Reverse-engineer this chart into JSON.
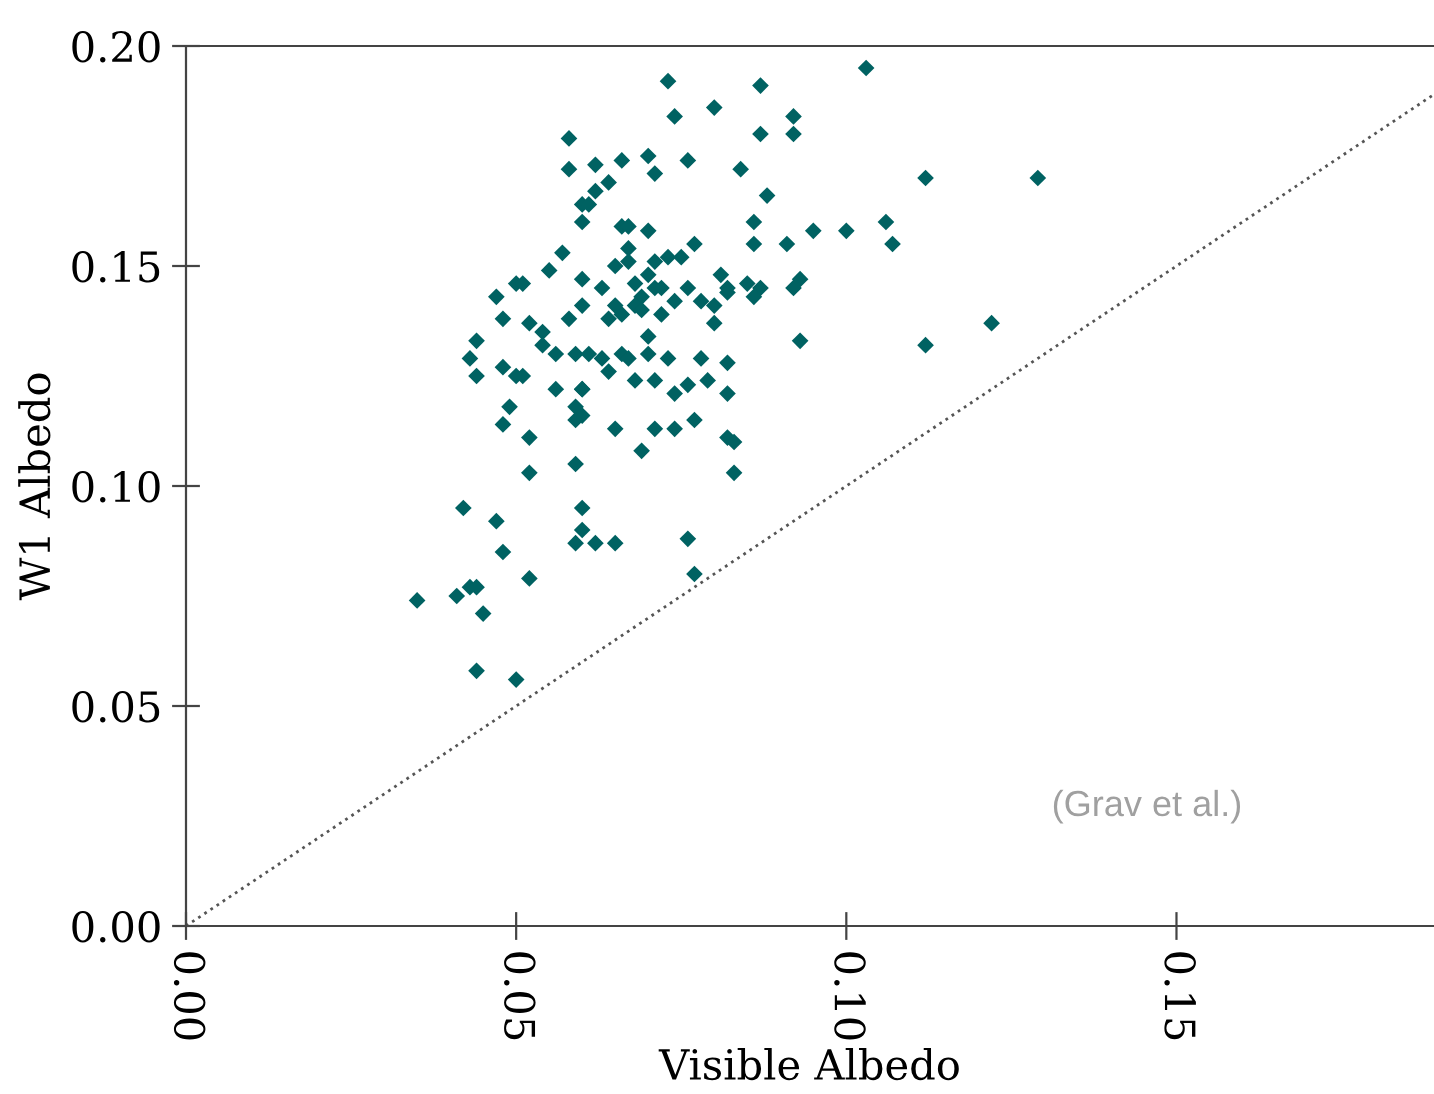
{
  "chart_data": {
    "type": "scatter",
    "xlabel": "Visible Albedo",
    "ylabel": "W1 Albedo",
    "xlim": [
      0,
      0.189
    ],
    "ylim": [
      0,
      0.2
    ],
    "xticks": [
      {
        "value": 0,
        "label": "0.00"
      },
      0.05,
      {
        "value": 0.1,
        "label": "0.10"
      },
      0.15
    ],
    "yticks": [
      {
        "value": 0,
        "label": "0.00"
      },
      0.05,
      {
        "value": 0.1,
        "label": "0.10"
      },
      0.15,
      {
        "value": 0.2,
        "label": "0.20"
      }
    ],
    "grid": false,
    "legend": false,
    "annotations": [
      "(Grav et al.)"
    ],
    "series": [
      {
        "color": "#006262",
        "marker": "diamond",
        "x": [
          0.035,
          0.041,
          0.043,
          0.044,
          0.045,
          0.044,
          0.05,
          0.052,
          0.052,
          0.042,
          0.047,
          0.048,
          0.06,
          0.06,
          0.059,
          0.062,
          0.065,
          0.076,
          0.077,
          0.122,
          0.112,
          0.129,
          0.103,
          0.112,
          0.106,
          0.107,
          0.1,
          0.095,
          0.091,
          0.087,
          0.092,
          0.092,
          0.087,
          0.084,
          0.088,
          0.086,
          0.086,
          0.085,
          0.087,
          0.082,
          0.086,
          0.092,
          0.093,
          0.093,
          0.082,
          0.073,
          0.074,
          0.08,
          0.058,
          0.058,
          0.062,
          0.066,
          0.07,
          0.071,
          0.076,
          0.064,
          0.062,
          0.06,
          0.061,
          0.06,
          0.066,
          0.067,
          0.07,
          0.077,
          0.057,
          0.055,
          0.05,
          0.051,
          0.047,
          0.048,
          0.044,
          0.043,
          0.052,
          0.067,
          0.065,
          0.067,
          0.071,
          0.073,
          0.075,
          0.068,
          0.07,
          0.071,
          0.072,
          0.069,
          0.074,
          0.076,
          0.078,
          0.08,
          0.081,
          0.082,
          0.06,
          0.063,
          0.06,
          0.065,
          0.064,
          0.066,
          0.068,
          0.069,
          0.072,
          0.07,
          0.058,
          0.054,
          0.054,
          0.056,
          0.059,
          0.061,
          0.063,
          0.066,
          0.067,
          0.07,
          0.073,
          0.078,
          0.048,
          0.08,
          0.044,
          0.05,
          0.051,
          0.056,
          0.06,
          0.06,
          0.059,
          0.06,
          0.059,
          0.049,
          0.048,
          0.052,
          0.059,
          0.065,
          0.069,
          0.071,
          0.074,
          0.077,
          0.074,
          0.076,
          0.079,
          0.082,
          0.082,
          0.083,
          0.083,
          0.068,
          0.064,
          0.071
        ],
        "values": [
          0.074,
          0.075,
          0.077,
          0.077,
          0.071,
          0.058,
          0.056,
          0.079,
          0.103,
          0.095,
          0.092,
          0.085,
          0.095,
          0.09,
          0.087,
          0.087,
          0.087,
          0.088,
          0.08,
          0.137,
          0.132,
          0.17,
          0.195,
          0.17,
          0.16,
          0.155,
          0.158,
          0.158,
          0.155,
          0.191,
          0.184,
          0.18,
          0.18,
          0.172,
          0.166,
          0.16,
          0.155,
          0.146,
          0.145,
          0.145,
          0.143,
          0.145,
          0.147,
          0.133,
          0.128,
          0.192,
          0.184,
          0.186,
          0.179,
          0.172,
          0.173,
          0.174,
          0.175,
          0.171,
          0.174,
          0.169,
          0.167,
          0.164,
          0.164,
          0.16,
          0.159,
          0.159,
          0.158,
          0.155,
          0.153,
          0.149,
          0.146,
          0.146,
          0.143,
          0.138,
          0.133,
          0.129,
          0.137,
          0.154,
          0.15,
          0.151,
          0.151,
          0.152,
          0.152,
          0.146,
          0.148,
          0.145,
          0.145,
          0.143,
          0.142,
          0.145,
          0.142,
          0.141,
          0.148,
          0.144,
          0.147,
          0.145,
          0.141,
          0.141,
          0.138,
          0.139,
          0.141,
          0.14,
          0.139,
          0.134,
          0.138,
          0.135,
          0.132,
          0.13,
          0.13,
          0.13,
          0.129,
          0.13,
          0.129,
          0.13,
          0.129,
          0.129,
          0.127,
          0.137,
          0.125,
          0.125,
          0.125,
          0.122,
          0.122,
          0.122,
          0.118,
          0.116,
          0.115,
          0.118,
          0.114,
          0.111,
          0.105,
          0.113,
          0.108,
          0.113,
          0.113,
          0.115,
          0.121,
          0.123,
          0.124,
          0.121,
          0.111,
          0.11,
          0.103,
          0.124,
          0.126,
          0.124
        ]
      },
      {
        "type": "line",
        "color": "#555555",
        "line_style": "dotted",
        "x": [
          0,
          0.189
        ],
        "values": [
          0,
          0.189
        ]
      }
    ]
  }
}
